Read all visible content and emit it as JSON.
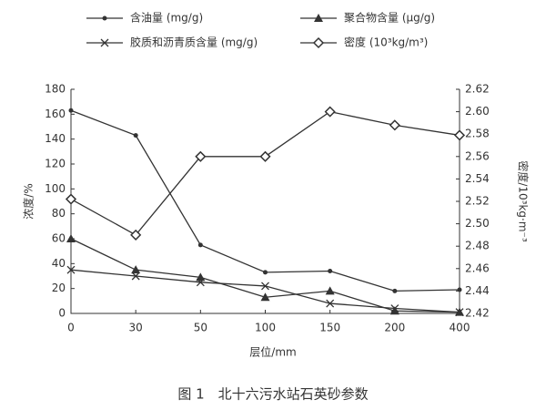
{
  "chart_data": {
    "type": "line",
    "caption": "图 1　北十六污水站石英砂参数",
    "x_label": "层位/mm",
    "y_label": "浓度/%",
    "y2_label": "密度/10³kg·m⁻³",
    "categories": [
      "0",
      "30",
      "50",
      "100",
      "150",
      "200",
      "400"
    ],
    "ylim": [
      0,
      180
    ],
    "yticks": [
      0,
      20,
      40,
      60,
      80,
      100,
      120,
      140,
      160,
      180
    ],
    "y2lim": [
      2.42,
      2.62
    ],
    "y2ticks": [
      2.42,
      2.44,
      2.46,
      2.48,
      {
        "value": 2.5,
        "label": "2.50"
      },
      2.52,
      2.54,
      2.56,
      2.58,
      {
        "value": 2.6,
        "label": "2.60"
      },
      2.62
    ],
    "series": [
      {
        "name": "含油量 (mg/g)",
        "color": "#333333",
        "marker": "circle",
        "values": [
          163,
          143,
          55,
          33,
          34,
          18,
          19
        ]
      },
      {
        "name": "聚合物含量 (μg/g)",
        "color": "#333333",
        "marker": "triangle",
        "values": [
          60,
          35,
          29,
          13,
          18,
          2,
          1
        ]
      },
      {
        "name": "胶质和沥青质含量 (mg/g)",
        "color": "#333333",
        "marker": "cross",
        "values": [
          35,
          30,
          25,
          22,
          8,
          4,
          1
        ]
      },
      {
        "name": "密度 (10³kg/m³)",
        "color": "#333333",
        "marker": "diamond",
        "axis": "y2",
        "values": [
          2.522,
          2.49,
          2.56,
          2.56,
          2.6,
          2.588,
          2.579
        ]
      }
    ]
  }
}
